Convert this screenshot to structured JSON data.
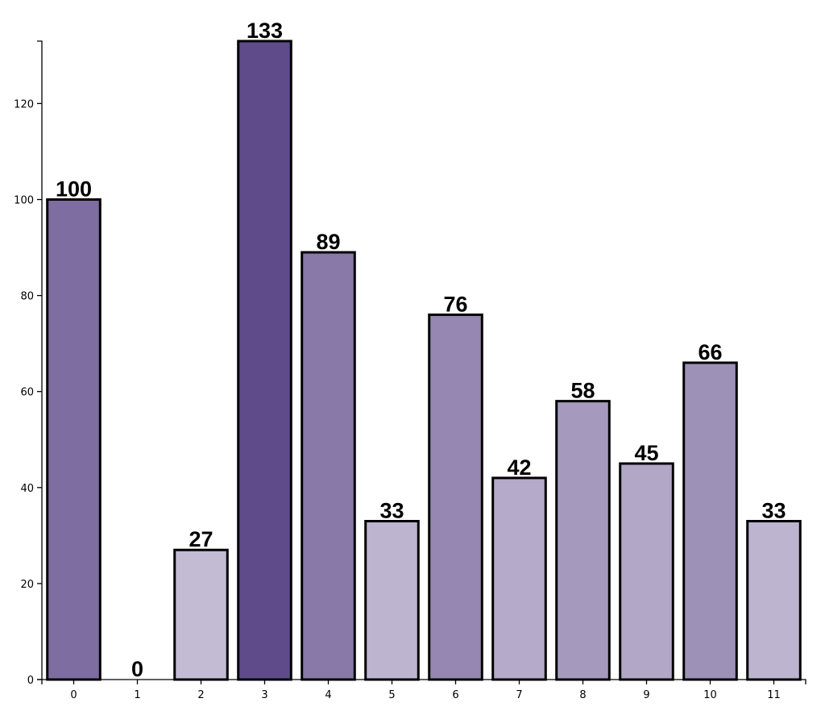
{
  "chart_data": {
    "type": "bar",
    "categories": [
      "0",
      "1",
      "2",
      "3",
      "4",
      "5",
      "6",
      "7",
      "8",
      "9",
      "10",
      "11"
    ],
    "values": [
      100,
      0,
      27,
      133,
      89,
      33,
      76,
      42,
      58,
      45,
      66,
      33
    ],
    "value_labels": [
      "100",
      "0",
      "27",
      "133",
      "89",
      "33",
      "76",
      "42",
      "58",
      "45",
      "66",
      "33"
    ],
    "title": "",
    "xlabel": "",
    "ylabel": "",
    "ylim": [
      0,
      133
    ],
    "yticks": [
      0,
      20,
      40,
      60,
      80,
      100,
      120
    ],
    "ytick_labels": [
      "0",
      "20",
      "40",
      "60",
      "80",
      "100",
      "120"
    ],
    "grid": false,
    "legend": "none",
    "colors": {
      "scale_low": "#dcd6e6",
      "scale_high": "#5f4b8a",
      "bar_stroke": "#000000"
    }
  }
}
